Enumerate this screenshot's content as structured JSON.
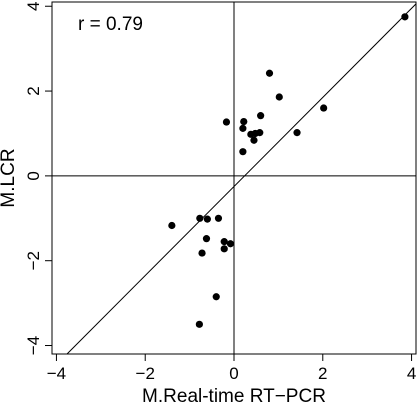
{
  "chart_data": {
    "type": "scatter",
    "title": "",
    "xlabel": "M.Real-time RT−PCR",
    "ylabel": "M.LCR",
    "xlim": [
      -4.1,
      4.1
    ],
    "ylim": [
      -4.2,
      4.1
    ],
    "xticks": [
      -4,
      -2,
      0,
      2,
      4
    ],
    "xtick_labels": [
      "−4",
      "−2",
      "0",
      "2",
      "4"
    ],
    "yticks": [
      -4,
      -2,
      0,
      2,
      4
    ],
    "ytick_labels": [
      "−4",
      "−2",
      "0",
      "2",
      "4"
    ],
    "annotation": "r = 0.79",
    "reference_lines": {
      "x": 0,
      "y": 0
    },
    "fit_line": {
      "slope": 1.05,
      "intercept": -0.25
    },
    "grid": false,
    "legend": "none",
    "point_color": "#000000",
    "points": [
      {
        "x": 3.85,
        "y": 3.75
      },
      {
        "x": 0.8,
        "y": 2.42
      },
      {
        "x": 1.02,
        "y": 1.86
      },
      {
        "x": 2.02,
        "y": 1.6
      },
      {
        "x": 0.6,
        "y": 1.42
      },
      {
        "x": 0.22,
        "y": 1.28
      },
      {
        "x": -0.17,
        "y": 1.27
      },
      {
        "x": 0.2,
        "y": 1.12
      },
      {
        "x": 0.58,
        "y": 1.02
      },
      {
        "x": 0.48,
        "y": 1.0
      },
      {
        "x": 0.38,
        "y": 0.98
      },
      {
        "x": 1.42,
        "y": 1.02
      },
      {
        "x": 0.45,
        "y": 0.84
      },
      {
        "x": 0.2,
        "y": 0.57
      },
      {
        "x": -1.4,
        "y": -1.17
      },
      {
        "x": -0.77,
        "y": -1.0
      },
      {
        "x": -0.6,
        "y": -1.02
      },
      {
        "x": -0.35,
        "y": -1.0
      },
      {
        "x": -0.62,
        "y": -1.48
      },
      {
        "x": -0.22,
        "y": -1.55
      },
      {
        "x": -0.08,
        "y": -1.6
      },
      {
        "x": -0.22,
        "y": -1.72
      },
      {
        "x": -0.72,
        "y": -1.82
      },
      {
        "x": -0.4,
        "y": -2.85
      },
      {
        "x": -0.78,
        "y": -3.5
      }
    ]
  }
}
